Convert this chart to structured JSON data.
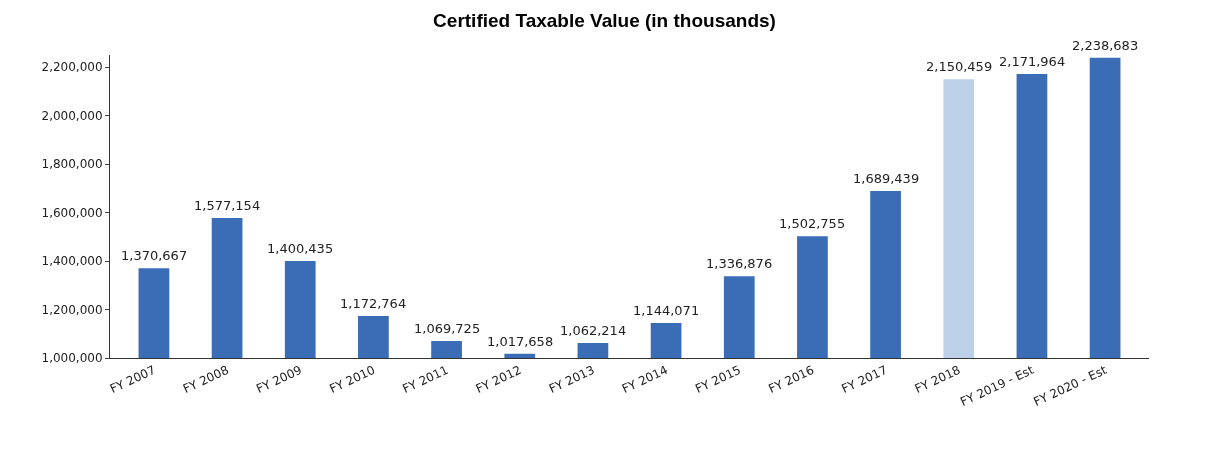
{
  "chart_data": {
    "type": "bar",
    "title": "Certified Taxable Value (in thousands)",
    "categories": [
      "FY 2007",
      "FY 2008",
      "FY 2009",
      "FY 2010",
      "FY 2011",
      "FY 2012",
      "FY 2013",
      "FY 2014",
      "FY 2015",
      "FY 2016",
      "FY 2017",
      "FY 2018",
      "FY 2019 - Est",
      "FY 2020 - Est"
    ],
    "values": [
      1370667,
      1577154,
      1400435,
      1172764,
      1069725,
      1017658,
      1062214,
      1144071,
      1336876,
      1502755,
      1689439,
      2150459,
      2171964,
      2238683
    ],
    "colors": [
      "#3a6db5",
      "#3a6db5",
      "#3a6db5",
      "#3a6db5",
      "#3a6db5",
      "#3a6db5",
      "#3a6db5",
      "#3a6db5",
      "#3a6db5",
      "#3a6db5",
      "#3a6db5",
      "#bcd0e8",
      "#3a6db5",
      "#3a6db5"
    ],
    "value_labels": [
      "1,370,667",
      "1,577,154",
      "1,400,435",
      "1,172,764",
      "1,069,725",
      "1,017,658",
      "1,062,214",
      "1,144,071",
      "1,336,876",
      "1,502,755",
      "1,689,439",
      "2,150,459",
      "2,171,964",
      "2,238,683"
    ],
    "ylim": [
      1000000,
      2250000
    ],
    "yticks": [
      {
        "value": 1000000,
        "label": "1,000,000"
      },
      {
        "value": 1200000,
        "label": "1,200,000"
      },
      {
        "value": 1400000,
        "label": "1,400,000"
      },
      {
        "value": 1600000,
        "label": "1,600,000"
      },
      {
        "value": 1800000,
        "label": "1,800,000"
      },
      {
        "value": 2000000,
        "label": "2,000,000"
      },
      {
        "value": 2200000,
        "label": "2,200,000"
      }
    ],
    "grid": false
  }
}
